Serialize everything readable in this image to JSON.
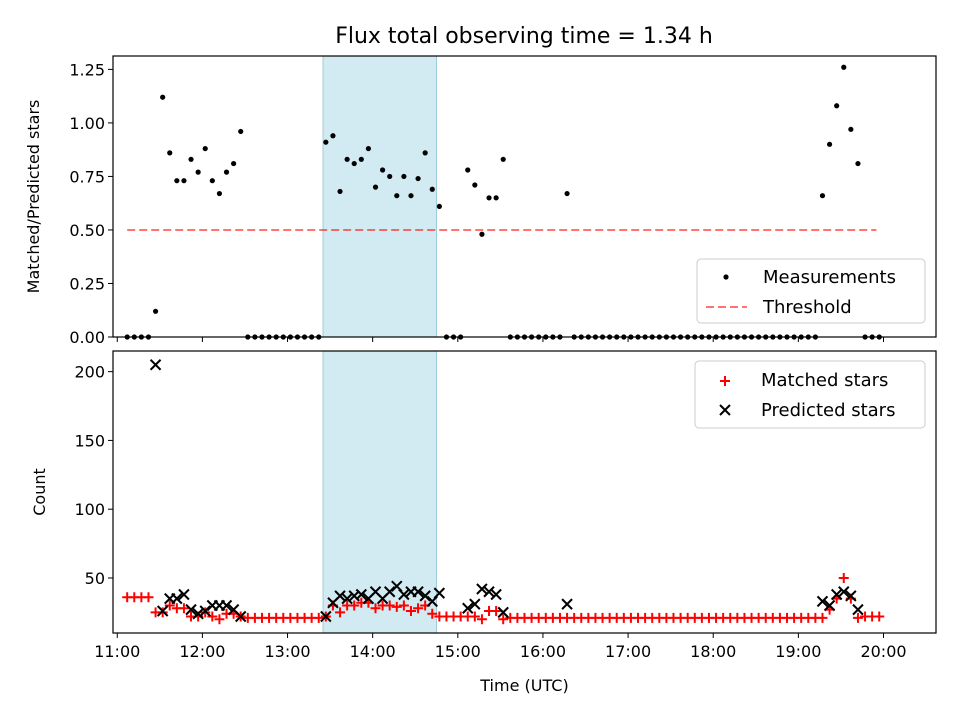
{
  "title": "Flux total observing time = 1.34 h",
  "colors": {
    "highlight": "#add8e6",
    "threshold": "#ff0000",
    "measurement": "#000000",
    "matched": "#ff0000",
    "predicted": "#000000"
  },
  "chart_data": [
    {
      "type": "scatter",
      "panel": "top",
      "title": "Flux total observing time = 1.34 h",
      "ylabel": "Matched/Predicted stars",
      "xlabel": "",
      "xlim": [
        "10:57",
        "20:37"
      ],
      "ylim": [
        0,
        1.3125
      ],
      "y_ticks": [
        "0.00",
        "0.25",
        "0.50",
        "0.75",
        "1.00",
        "1.25"
      ],
      "highlight_span": [
        "13:25",
        "14:45"
      ],
      "legend": {
        "position": "lower-right",
        "entries": [
          "Measurements",
          "Threshold"
        ]
      },
      "threshold": {
        "name": "Threshold",
        "y": 0.5,
        "x_start": "11:07",
        "x_end": "19:55",
        "style": "dashed"
      },
      "series": [
        {
          "name": "Measurements",
          "marker": "dot",
          "points": [
            [
              "11:07",
              0
            ],
            [
              "11:12",
              0
            ],
            [
              "11:17",
              0
            ],
            [
              "11:22",
              0
            ],
            [
              "11:27",
              0.12
            ],
            [
              "11:32",
              1.12
            ],
            [
              "11:37",
              0.86
            ],
            [
              "11:42",
              0.73
            ],
            [
              "11:47",
              0.73
            ],
            [
              "11:52",
              0.83
            ],
            [
              "11:57",
              0.77
            ],
            [
              "12:02",
              0.88
            ],
            [
              "12:07",
              0.73
            ],
            [
              "12:12",
              0.67
            ],
            [
              "12:17",
              0.77
            ],
            [
              "12:22",
              0.81
            ],
            [
              "12:27",
              0.96
            ],
            [
              "12:32",
              0
            ],
            [
              "12:37",
              0
            ],
            [
              "12:42",
              0
            ],
            [
              "12:47",
              0
            ],
            [
              "12:52",
              0
            ],
            [
              "12:57",
              0
            ],
            [
              "13:02",
              0
            ],
            [
              "13:07",
              0
            ],
            [
              "13:12",
              0
            ],
            [
              "13:17",
              0
            ],
            [
              "13:22",
              0
            ],
            [
              "13:27",
              0.91
            ],
            [
              "13:32",
              0.94
            ],
            [
              "13:37",
              0.68
            ],
            [
              "13:42",
              0.83
            ],
            [
              "13:47",
              0.81
            ],
            [
              "13:52",
              0.83
            ],
            [
              "13:57",
              0.88
            ],
            [
              "14:02",
              0.7
            ],
            [
              "14:07",
              0.78
            ],
            [
              "14:12",
              0.75
            ],
            [
              "14:17",
              0.66
            ],
            [
              "14:22",
              0.75
            ],
            [
              "14:27",
              0.66
            ],
            [
              "14:32",
              0.74
            ],
            [
              "14:37",
              0.86
            ],
            [
              "14:42",
              0.69
            ],
            [
              "14:47",
              0.61
            ],
            [
              "14:52",
              0
            ],
            [
              "14:57",
              0
            ],
            [
              "15:02",
              0
            ],
            [
              "15:07",
              0.78
            ],
            [
              "15:12",
              0.71
            ],
            [
              "15:17",
              0.48
            ],
            [
              "15:22",
              0.65
            ],
            [
              "15:27",
              0.65
            ],
            [
              "15:32",
              0.83
            ],
            [
              "15:37",
              0
            ],
            [
              "15:42",
              0
            ],
            [
              "15:47",
              0
            ],
            [
              "15:52",
              0
            ],
            [
              "15:57",
              0
            ],
            [
              "16:02",
              0
            ],
            [
              "16:07",
              0
            ],
            [
              "16:12",
              0
            ],
            [
              "16:17",
              0.67
            ],
            [
              "16:22",
              0
            ],
            [
              "16:27",
              0
            ],
            [
              "16:32",
              0
            ],
            [
              "16:37",
              0
            ],
            [
              "16:42",
              0
            ],
            [
              "16:47",
              0
            ],
            [
              "16:52",
              0
            ],
            [
              "16:57",
              0
            ],
            [
              "17:02",
              0
            ],
            [
              "17:07",
              0
            ],
            [
              "17:12",
              0
            ],
            [
              "17:17",
              0
            ],
            [
              "17:22",
              0
            ],
            [
              "17:27",
              0
            ],
            [
              "17:32",
              0
            ],
            [
              "17:37",
              0
            ],
            [
              "17:42",
              0
            ],
            [
              "17:47",
              0
            ],
            [
              "17:52",
              0
            ],
            [
              "17:57",
              0
            ],
            [
              "18:02",
              0
            ],
            [
              "18:07",
              0
            ],
            [
              "18:12",
              0
            ],
            [
              "18:17",
              0
            ],
            [
              "18:22",
              0
            ],
            [
              "18:27",
              0
            ],
            [
              "18:32",
              0
            ],
            [
              "18:37",
              0
            ],
            [
              "18:42",
              0
            ],
            [
              "18:47",
              0
            ],
            [
              "18:52",
              0
            ],
            [
              "18:57",
              0
            ],
            [
              "19:02",
              0
            ],
            [
              "19:07",
              0
            ],
            [
              "19:12",
              0
            ],
            [
              "19:17",
              0.66
            ],
            [
              "19:22",
              0.9
            ],
            [
              "19:27",
              1.08
            ],
            [
              "19:32",
              1.26
            ],
            [
              "19:37",
              0.97
            ],
            [
              "19:42",
              0.81
            ],
            [
              "19:47",
              0
            ],
            [
              "19:52",
              0
            ],
            [
              "19:57",
              0
            ]
          ]
        }
      ]
    },
    {
      "type": "scatter",
      "panel": "bottom",
      "ylabel": "Count",
      "xlabel": "Time (UTC)",
      "xlim": [
        "10:57",
        "20:37"
      ],
      "ylim": [
        10,
        215
      ],
      "y_ticks": [
        "50",
        "100",
        "150",
        "200"
      ],
      "x_ticks": [
        "11:00",
        "12:00",
        "13:00",
        "14:00",
        "15:00",
        "16:00",
        "17:00",
        "18:00",
        "19:00",
        "20:00"
      ],
      "highlight_span": [
        "13:25",
        "14:45"
      ],
      "legend": {
        "position": "upper-right",
        "entries": [
          "Matched stars",
          "Predicted stars"
        ]
      },
      "series": [
        {
          "name": "Matched stars",
          "marker": "plus",
          "points": [
            [
              "11:07",
              36
            ],
            [
              "11:12",
              36
            ],
            [
              "11:17",
              36
            ],
            [
              "11:22",
              36
            ],
            [
              "11:27",
              25
            ],
            [
              "11:32",
              25
            ],
            [
              "11:37",
              30
            ],
            [
              "11:42",
              28
            ],
            [
              "11:47",
              28
            ],
            [
              "11:52",
              22
            ],
            [
              "11:57",
              22
            ],
            [
              "12:02",
              25
            ],
            [
              "12:07",
              22
            ],
            [
              "12:12",
              20
            ],
            [
              "12:17",
              24
            ],
            [
              "12:22",
              24
            ],
            [
              "12:27",
              22
            ],
            [
              "12:32",
              21
            ],
            [
              "12:37",
              21
            ],
            [
              "12:42",
              21
            ],
            [
              "12:47",
              21
            ],
            [
              "12:52",
              21
            ],
            [
              "12:57",
              21
            ],
            [
              "13:02",
              21
            ],
            [
              "13:07",
              21
            ],
            [
              "13:12",
              21
            ],
            [
              "13:17",
              21
            ],
            [
              "13:22",
              21
            ],
            [
              "13:27",
              22
            ],
            [
              "13:32",
              30
            ],
            [
              "13:37",
              25
            ],
            [
              "13:42",
              30
            ],
            [
              "13:47",
              30
            ],
            [
              "13:52",
              32
            ],
            [
              "13:57",
              32
            ],
            [
              "14:02",
              28
            ],
            [
              "14:07",
              30
            ],
            [
              "14:12",
              30
            ],
            [
              "14:17",
              29
            ],
            [
              "14:22",
              30
            ],
            [
              "14:27",
              26
            ],
            [
              "14:32",
              28
            ],
            [
              "14:37",
              30
            ],
            [
              "14:42",
              24
            ],
            [
              "14:47",
              22
            ],
            [
              "14:52",
              22
            ],
            [
              "14:57",
              22
            ],
            [
              "15:02",
              22
            ],
            [
              "15:07",
              22
            ],
            [
              "15:12",
              22
            ],
            [
              "15:17",
              20
            ],
            [
              "15:22",
              26
            ],
            [
              "15:27",
              26
            ],
            [
              "15:32",
              20
            ],
            [
              "15:37",
              21
            ],
            [
              "15:42",
              21
            ],
            [
              "15:47",
              21
            ],
            [
              "15:52",
              21
            ],
            [
              "15:57",
              21
            ],
            [
              "16:02",
              21
            ],
            [
              "16:07",
              21
            ],
            [
              "16:12",
              21
            ],
            [
              "16:17",
              21
            ],
            [
              "16:22",
              21
            ],
            [
              "16:27",
              21
            ],
            [
              "16:32",
              21
            ],
            [
              "16:37",
              21
            ],
            [
              "16:42",
              21
            ],
            [
              "16:47",
              21
            ],
            [
              "16:52",
              21
            ],
            [
              "16:57",
              21
            ],
            [
              "17:02",
              21
            ],
            [
              "17:07",
              21
            ],
            [
              "17:12",
              21
            ],
            [
              "17:17",
              21
            ],
            [
              "17:22",
              21
            ],
            [
              "17:27",
              21
            ],
            [
              "17:32",
              21
            ],
            [
              "17:37",
              21
            ],
            [
              "17:42",
              21
            ],
            [
              "17:47",
              21
            ],
            [
              "17:52",
              21
            ],
            [
              "17:57",
              21
            ],
            [
              "18:02",
              21
            ],
            [
              "18:07",
              21
            ],
            [
              "18:12",
              21
            ],
            [
              "18:17",
              21
            ],
            [
              "18:22",
              21
            ],
            [
              "18:27",
              21
            ],
            [
              "18:32",
              21
            ],
            [
              "18:37",
              21
            ],
            [
              "18:42",
              21
            ],
            [
              "18:47",
              21
            ],
            [
              "18:52",
              21
            ],
            [
              "18:57",
              21
            ],
            [
              "19:02",
              21
            ],
            [
              "19:07",
              21
            ],
            [
              "19:12",
              21
            ],
            [
              "19:17",
              21
            ],
            [
              "19:22",
              27
            ],
            [
              "19:27",
              35
            ],
            [
              "19:32",
              50
            ],
            [
              "19:37",
              35
            ],
            [
              "19:42",
              21
            ],
            [
              "19:47",
              22
            ],
            [
              "19:52",
              22
            ],
            [
              "19:57",
              22
            ]
          ]
        },
        {
          "name": "Predicted stars",
          "marker": "x",
          "points": [
            [
              "11:27",
              205
            ],
            [
              "11:32",
              26
            ],
            [
              "11:37",
              35
            ],
            [
              "11:42",
              35
            ],
            [
              "11:47",
              38
            ],
            [
              "11:52",
              27
            ],
            [
              "11:57",
              24
            ],
            [
              "12:02",
              26
            ],
            [
              "12:07",
              30
            ],
            [
              "12:12",
              30
            ],
            [
              "12:17",
              30
            ],
            [
              "12:22",
              27
            ],
            [
              "12:27",
              22
            ],
            [
              "13:27",
              22
            ],
            [
              "13:32",
              32
            ],
            [
              "13:37",
              37
            ],
            [
              "13:42",
              35
            ],
            [
              "13:47",
              37
            ],
            [
              "13:52",
              38
            ],
            [
              "13:57",
              35
            ],
            [
              "14:02",
              40
            ],
            [
              "14:07",
              35
            ],
            [
              "14:12",
              40
            ],
            [
              "14:17",
              44
            ],
            [
              "14:22",
              38
            ],
            [
              "14:27",
              40
            ],
            [
              "14:32",
              40
            ],
            [
              "14:37",
              37
            ],
            [
              "14:42",
              33
            ],
            [
              "14:47",
              39
            ],
            [
              "15:07",
              28
            ],
            [
              "15:12",
              31
            ],
            [
              "15:17",
              42
            ],
            [
              "15:22",
              40
            ],
            [
              "15:27",
              38
            ],
            [
              "15:32",
              25
            ],
            [
              "16:17",
              31
            ],
            [
              "19:17",
              33
            ],
            [
              "19:22",
              30
            ],
            [
              "19:27",
              38
            ],
            [
              "19:32",
              40
            ],
            [
              "19:37",
              37
            ],
            [
              "19:42",
              27
            ]
          ]
        }
      ]
    }
  ]
}
